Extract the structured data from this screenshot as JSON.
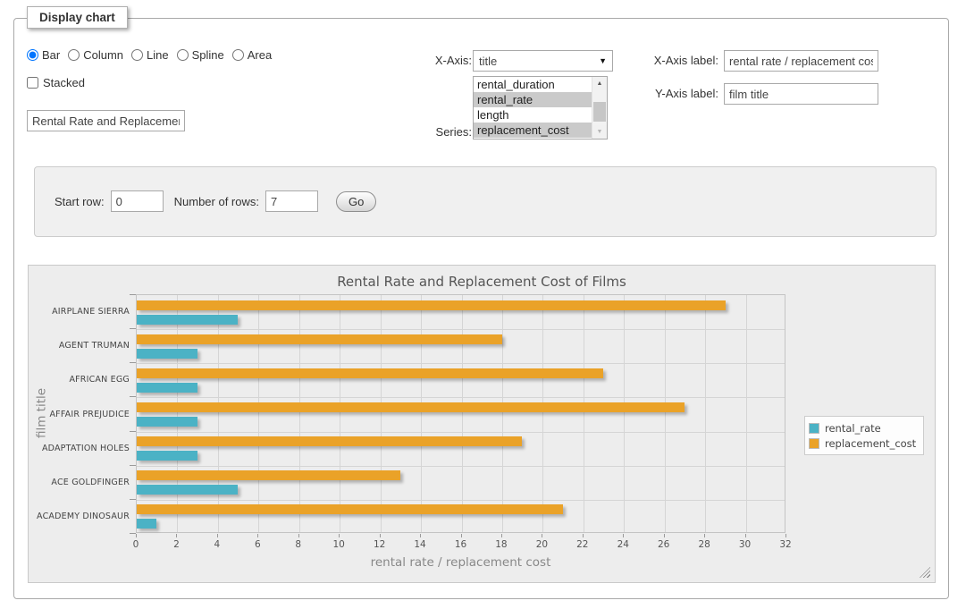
{
  "panel_legend": "Display chart",
  "chart_type_options": [
    {
      "label": "Bar",
      "selected": true
    },
    {
      "label": "Column",
      "selected": false
    },
    {
      "label": "Line",
      "selected": false
    },
    {
      "label": "Spline",
      "selected": false
    },
    {
      "label": "Area",
      "selected": false
    }
  ],
  "stacked": {
    "label": "Stacked",
    "checked": false
  },
  "title_input": {
    "value": "Rental Rate and Replacement Cost of Films"
  },
  "x_axis": {
    "label": "X-Axis:",
    "value": "title"
  },
  "series_select": {
    "label": "Series:",
    "options": [
      {
        "label": "rental_duration",
        "selected": false
      },
      {
        "label": "rental_rate",
        "selected": true
      },
      {
        "label": "length",
        "selected": false
      },
      {
        "label": "replacement_cost",
        "selected": true
      }
    ]
  },
  "x_axis_label": {
    "label": "X-Axis label:",
    "value": "rental rate / replacement cost"
  },
  "y_axis_label": {
    "label": "Y-Axis label:",
    "value": "film title"
  },
  "row_controls": {
    "start_row_label": "Start row:",
    "start_row_value": "0",
    "num_rows_label": "Number of rows:",
    "num_rows_value": "7",
    "go_label": "Go"
  },
  "icons": {
    "dropdown": "▼",
    "scroll_up": "▲",
    "scroll_down": "▼"
  },
  "chart_data": {
    "type": "bar",
    "orientation": "horizontal",
    "title": "Rental Rate and Replacement Cost of Films",
    "categories": [
      "AIRPLANE SIERRA",
      "AGENT TRUMAN",
      "AFRICAN EGG",
      "AFFAIR PREJUDICE",
      "ADAPTATION HOLES",
      "ACE GOLDFINGER",
      "ACADEMY DINOSAUR"
    ],
    "series": [
      {
        "name": "rental_rate",
        "color": "#4bb2c5",
        "values": [
          4.99,
          2.99,
          2.99,
          2.99,
          2.99,
          4.99,
          0.99
        ]
      },
      {
        "name": "replacement_cost",
        "color": "#eaa228",
        "values": [
          28.99,
          17.99,
          22.99,
          26.99,
          18.99,
          12.99,
          20.99
        ]
      }
    ],
    "xlabel": "rental rate / replacement cost",
    "ylabel": "film title",
    "xlim": [
      0,
      32
    ],
    "xticks": [
      0,
      2,
      4,
      6,
      8,
      10,
      12,
      14,
      16,
      18,
      20,
      22,
      24,
      26,
      28,
      30,
      32
    ],
    "grid": true,
    "legend_position": "right",
    "bar_order_in_group": [
      "replacement_cost",
      "rental_rate"
    ]
  }
}
